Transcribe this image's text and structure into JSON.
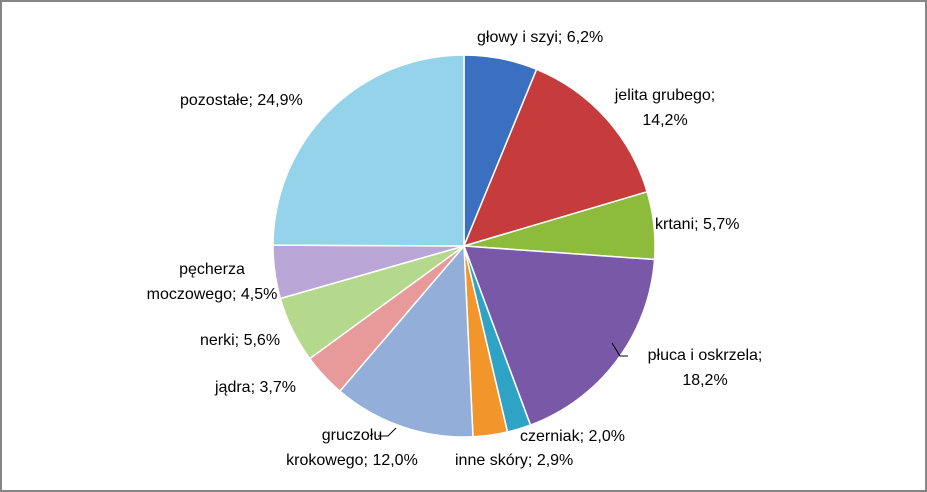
{
  "chart_data": {
    "type": "pie",
    "values": [
      6.2,
      14.2,
      5.7,
      18.2,
      2.0,
      2.9,
      12.0,
      3.7,
      5.6,
      4.5,
      24.9
    ],
    "value_labels": [
      "głowy i szyi; 6,2%",
      "jelita grubego;\n14,2%",
      "krtani; 5,7%",
      "płuca i oskrzela;\n18,2%",
      "czerniak; 2,0%",
      "inne skóry; 2,9%",
      "gruczołu\nkrokowego; 12,0%",
      "jądra; 3,7%",
      "nerki; 5,6%",
      "pęcherza\nmoczowego; 4,5%",
      "pozostałe; 24,9%"
    ],
    "colors": [
      "#3b6fc0",
      "#c63b3b",
      "#8dbb3c",
      "#7a58a8",
      "#2ea3c6",
      "#f2952a",
      "#93afd9",
      "#e8999a",
      "#b5d98c",
      "#b9a6d6",
      "#95d3ea"
    ]
  }
}
